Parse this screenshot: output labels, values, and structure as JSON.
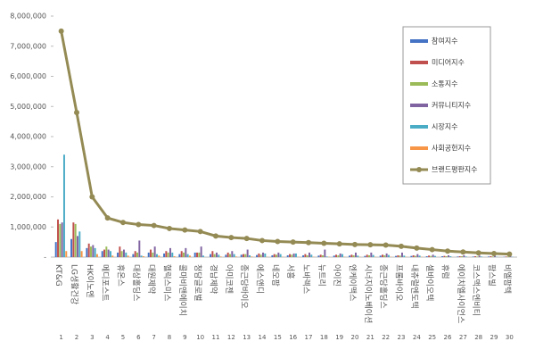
{
  "chart_data": {
    "type": "bar",
    "categories": [
      "KT&G",
      "LG생활건강",
      "HK이노엔",
      "메디포스트",
      "휴온스",
      "대상홀딩스",
      "대원제약",
      "헬릭스미스",
      "콜마비앤에이치",
      "청담글로벌",
      "경남제약",
      "아미코젠",
      "종근당바이오",
      "에스앤디",
      "네오팜",
      "서흥",
      "노바렉스",
      "뉴트리",
      "아이진",
      "엔케이맥스",
      "시너지이노베이션",
      "종근당홀딩스",
      "프롬바이오",
      "내츄럴엔도텍",
      "셀바이오텍",
      "휴럼",
      "에이치엘사이언스",
      "코스맥스엔비티",
      "팜스빌",
      "비엘팜텍"
    ],
    "ranks": [
      1,
      2,
      3,
      4,
      5,
      6,
      7,
      8,
      9,
      10,
      11,
      12,
      13,
      14,
      15,
      16,
      17,
      18,
      19,
      20,
      21,
      22,
      23,
      24,
      25,
      26,
      27,
      28,
      29,
      30
    ],
    "series": [
      {
        "name": "참여지수",
        "color": "#4472c4",
        "values": [
          500000,
          600000,
          300000,
          200000,
          150000,
          100000,
          150000,
          120000,
          100000,
          150000,
          100000,
          80000,
          80000,
          70000,
          60000,
          60000,
          60000,
          50000,
          50000,
          50000,
          40000,
          50000,
          40000,
          40000,
          30000,
          30000,
          20000,
          20000,
          20000,
          10000
        ]
      },
      {
        "name": "미디어지수",
        "color": "#c0504d",
        "values": [
          1250000,
          1150000,
          450000,
          250000,
          350000,
          200000,
          250000,
          200000,
          200000,
          150000,
          200000,
          150000,
          100000,
          120000,
          100000,
          100000,
          100000,
          80000,
          80000,
          80000,
          80000,
          80000,
          60000,
          60000,
          50000,
          40000,
          30000,
          30000,
          30000,
          20000
        ]
      },
      {
        "name": "소통지수",
        "color": "#9bbb59",
        "values": [
          1100000,
          1100000,
          350000,
          350000,
          200000,
          150000,
          150000,
          150000,
          150000,
          150000,
          100000,
          100000,
          100000,
          80000,
          80000,
          80000,
          60000,
          60000,
          60000,
          60000,
          60000,
          60000,
          50000,
          40000,
          40000,
          30000,
          30000,
          20000,
          20000,
          20000
        ]
      },
      {
        "name": "커뮤니티지수",
        "color": "#8064a2",
        "values": [
          1150000,
          700000,
          400000,
          250000,
          250000,
          550000,
          350000,
          300000,
          300000,
          350000,
          150000,
          200000,
          250000,
          150000,
          150000,
          120000,
          150000,
          250000,
          120000,
          150000,
          150000,
          120000,
          150000,
          100000,
          80000,
          60000,
          60000,
          50000,
          40000,
          30000
        ]
      },
      {
        "name": "시장지수",
        "color": "#4bacc6",
        "values": [
          3400000,
          850000,
          300000,
          200000,
          150000,
          50000,
          100000,
          150000,
          100000,
          50000,
          80000,
          100000,
          60000,
          120000,
          100000,
          120000,
          80000,
          20000,
          100000,
          50000,
          70000,
          70000,
          50000,
          50000,
          40000,
          30000,
          20000,
          20000,
          10000,
          10000
        ]
      },
      {
        "name": "사회공헌지수",
        "color": "#f79646",
        "values": [
          200000,
          200000,
          100000,
          50000,
          50000,
          30000,
          50000,
          30000,
          50000,
          0,
          20000,
          20000,
          20000,
          10000,
          10000,
          10000,
          10000,
          10000,
          10000,
          10000,
          10000,
          10000,
          10000,
          10000,
          0,
          0,
          0,
          0,
          0,
          0
        ]
      },
      {
        "name": "브랜드평판지수",
        "color": "#948a54",
        "type": "line",
        "values": [
          7500000,
          4800000,
          2000000,
          1300000,
          1150000,
          1080000,
          1050000,
          950000,
          900000,
          850000,
          700000,
          650000,
          620000,
          550000,
          520000,
          500000,
          480000,
          460000,
          440000,
          420000,
          410000,
          400000,
          360000,
          300000,
          250000,
          200000,
          170000,
          140000,
          120000,
          100000
        ]
      }
    ],
    "ylim": [
      0,
      8000000
    ],
    "yticks": [
      {
        "value": 0,
        "label": "-"
      },
      {
        "value": 1000000,
        "label": "1,000,000"
      },
      {
        "value": 2000000,
        "label": "2,000,000"
      },
      {
        "value": 3000000,
        "label": "3,000,000"
      },
      {
        "value": 4000000,
        "label": "4,000,000"
      },
      {
        "value": 5000000,
        "label": "5,000,000"
      },
      {
        "value": 6000000,
        "label": "6,000,000"
      },
      {
        "value": 7000000,
        "label": "7,000,000"
      },
      {
        "value": 8000000,
        "label": "8,000,000"
      }
    ],
    "legend": "upper right"
  }
}
